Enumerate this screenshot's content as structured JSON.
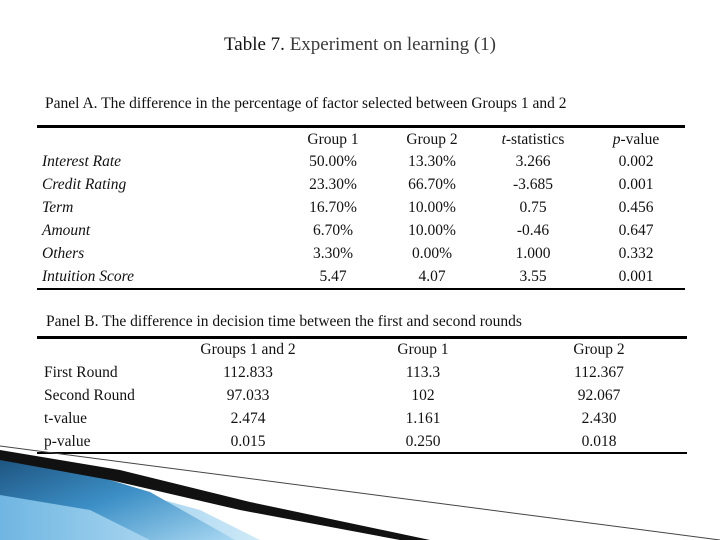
{
  "title": {
    "prefix": "Table 7.",
    "main": " Experiment on learning (1)"
  },
  "panelA": {
    "title": "Panel A. The difference in the percentage of factor selected between Groups 1 and 2",
    "headers": [
      {
        "italic": "",
        "rest": "Group 1"
      },
      {
        "italic": "",
        "rest": "Group 2"
      },
      {
        "italic": "t",
        "rest": "-statistics"
      },
      {
        "italic": "p",
        "rest": "-value"
      }
    ],
    "rows": [
      {
        "label": "Interest Rate",
        "values": [
          "50.00%",
          "13.30%",
          "3.266",
          "0.002"
        ]
      },
      {
        "label": "Credit Rating",
        "values": [
          "23.30%",
          "66.70%",
          "-3.685",
          "0.001"
        ]
      },
      {
        "label": "Term",
        "values": [
          "16.70%",
          "10.00%",
          "0.75",
          "0.456"
        ]
      },
      {
        "label": "Amount",
        "values": [
          "6.70%",
          "10.00%",
          "-0.46",
          "0.647"
        ]
      },
      {
        "label": "Others",
        "values": [
          "3.30%",
          "0.00%",
          "1.000",
          "0.332"
        ]
      },
      {
        "label": "Intuition Score",
        "values": [
          "5.47",
          "4.07",
          "3.55",
          "0.001"
        ]
      }
    ]
  },
  "panelB": {
    "title": "Panel B. The difference in decision time between the first and second rounds",
    "headers": [
      "Groups 1 and 2",
      "Group 1",
      "Group 2"
    ],
    "rows": [
      {
        "label": "First Round",
        "values": [
          "112.833",
          "113.3",
          "112.367"
        ]
      },
      {
        "label": "Second Round",
        "values": [
          "97.033",
          "102",
          "92.067"
        ]
      },
      {
        "label": "t-value",
        "values": [
          "2.474",
          "1.161",
          "2.430"
        ]
      },
      {
        "label": "p-value",
        "values": [
          "0.015",
          "0.250",
          "0.018"
        ]
      }
    ]
  },
  "colors": {
    "decor_dark": "#1b4f7a",
    "decor_mid": "#3c8fc6",
    "decor_light": "#a9d8f2",
    "stroke": "#000000"
  }
}
